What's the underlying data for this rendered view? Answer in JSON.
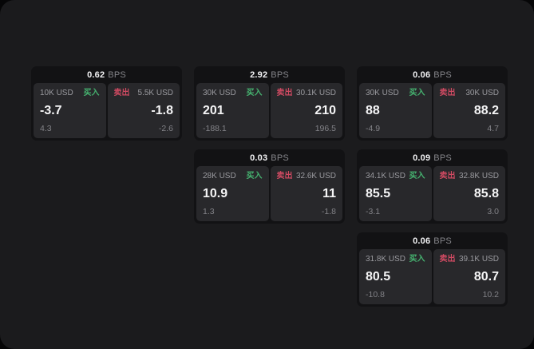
{
  "colors": {
    "page_background": "#1b1b1d",
    "card_background": "#121214",
    "panel_background": "#28282b",
    "buy_green": "#46b370",
    "sell_red": "#cf4a62",
    "primary_text": "#f5f5f6",
    "muted_text": "#9a9a9f"
  },
  "cards": [
    {
      "bps_value": "0.62",
      "bps_label": "BPS",
      "buy": {
        "amount": "10K USD",
        "side_label": "买入",
        "price": "-3.7",
        "delta": "4.3"
      },
      "sell": {
        "side_label": "卖出",
        "amount": "5.5K USD",
        "price": "-1.8",
        "delta": "-2.6"
      }
    },
    {
      "bps_value": "2.92",
      "bps_label": "BPS",
      "buy": {
        "amount": "30K USD",
        "side_label": "买入",
        "price": "201",
        "delta": "-188.1"
      },
      "sell": {
        "side_label": "卖出",
        "amount": "30.1K USD",
        "price": "210",
        "delta": "196.5"
      }
    },
    {
      "bps_value": "0.06",
      "bps_label": "BPS",
      "buy": {
        "amount": "30K USD",
        "side_label": "买入",
        "price": "88",
        "delta": "-4.9"
      },
      "sell": {
        "side_label": "卖出",
        "amount": "30K USD",
        "price": "88.2",
        "delta": "4.7"
      }
    },
    {
      "bps_value": "0.03",
      "bps_label": "BPS",
      "buy": {
        "amount": "28K USD",
        "side_label": "买入",
        "price": "10.9",
        "delta": "1.3"
      },
      "sell": {
        "side_label": "卖出",
        "amount": "32.6K USD",
        "price": "11",
        "delta": "-1.8"
      }
    },
    {
      "bps_value": "0.09",
      "bps_label": "BPS",
      "buy": {
        "amount": "34.1K USD",
        "side_label": "买入",
        "price": "85.5",
        "delta": "-3.1"
      },
      "sell": {
        "side_label": "卖出",
        "amount": "32.8K USD",
        "price": "85.8",
        "delta": "3.0"
      }
    },
    {
      "bps_value": "0.06",
      "bps_label": "BPS",
      "buy": {
        "amount": "31.8K USD",
        "side_label": "买入",
        "price": "80.5",
        "delta": "-10.8"
      },
      "sell": {
        "side_label": "卖出",
        "amount": "39.1K USD",
        "price": "80.7",
        "delta": "10.2"
      }
    }
  ]
}
